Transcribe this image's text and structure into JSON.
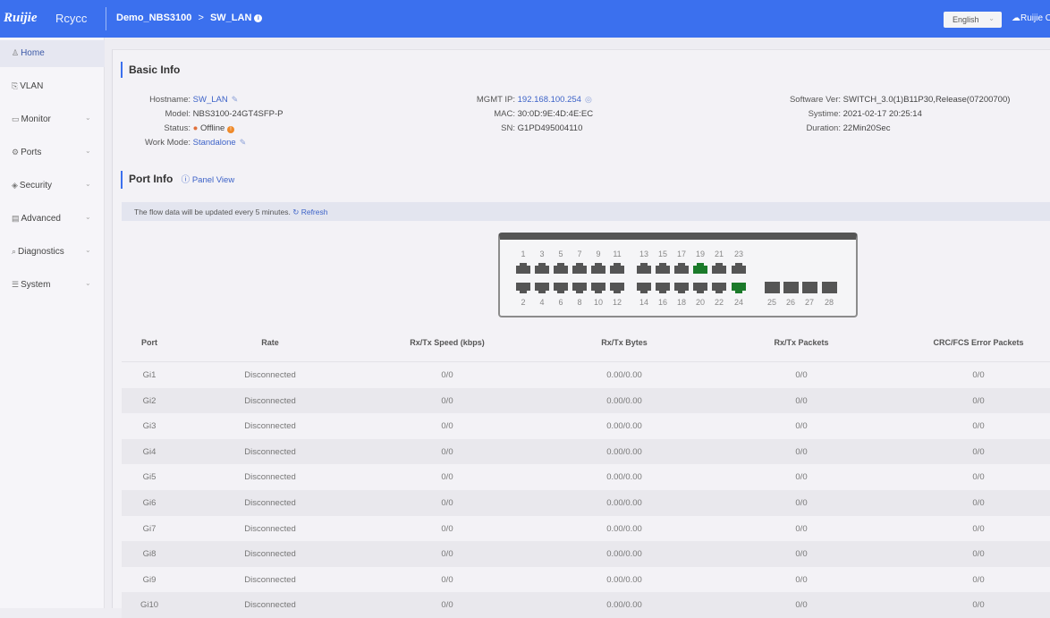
{
  "header": {
    "logo": "Ruijie",
    "logo2": "Rcycc",
    "crumb_parent": "Demo_NBS3100",
    "crumb_sep": ">",
    "crumb_current": "SW_LAN",
    "language": "English",
    "cloud_link": "Ruijie C"
  },
  "sidebar": {
    "items": [
      {
        "label": "Home",
        "icon": "home-icon",
        "active": true,
        "expand": false
      },
      {
        "label": "VLAN",
        "icon": "vlan-icon",
        "expand": false
      },
      {
        "label": "Monitor",
        "icon": "monitor-icon",
        "expand": true
      },
      {
        "label": "Ports",
        "icon": "gear-icon",
        "expand": true
      },
      {
        "label": "Security",
        "icon": "shield-icon",
        "expand": true
      },
      {
        "label": "Advanced",
        "icon": "briefcase-icon",
        "expand": true
      },
      {
        "label": "Diagnostics",
        "icon": "search-icon",
        "expand": true
      },
      {
        "label": "System",
        "icon": "sliders-icon",
        "expand": true
      }
    ]
  },
  "basic": {
    "title": "Basic Info",
    "hostname_k": "Hostname:",
    "hostname": "SW_LAN",
    "model_k": "Model:",
    "model": "NBS3100-24GT4SFP-P",
    "status_k": "Status:",
    "status": "Offline",
    "mode_k": "Work Mode:",
    "mode": "Standalone",
    "ip_k": "MGMT IP:",
    "ip": "192.168.100.254",
    "mac_k": "MAC:",
    "mac": "30:0D:9E:4D:4E:EC",
    "sn_k": "SN:",
    "sn": "G1PD495004110",
    "sw_k": "Software Ver:",
    "sw": "SWITCH_3.0(1)B11P30,Release(07200700)",
    "time_k": "Systime:",
    "time": "2021-02-17 20:25:14",
    "dur_k": "Duration:",
    "dur": "22Min20Sec"
  },
  "port_info": {
    "title": "Port Info",
    "panel_view": "Panel View",
    "notice": "The flow data will be updated every 5 minutes.",
    "refresh": "Refresh"
  },
  "panel": {
    "active_color": "#1b7a2a",
    "up_ports": [
      19,
      24
    ]
  },
  "table": {
    "headers": [
      "Port",
      "Rate",
      "Rx/Tx Speed (kbps)",
      "Rx/Tx Bytes",
      "Rx/Tx Packets",
      "CRC/FCS Error Packets"
    ],
    "rows": [
      [
        "Gi1",
        "Disconnected",
        "0/0",
        "0.00/0.00",
        "0/0",
        "0/0"
      ],
      [
        "Gi2",
        "Disconnected",
        "0/0",
        "0.00/0.00",
        "0/0",
        "0/0"
      ],
      [
        "Gi3",
        "Disconnected",
        "0/0",
        "0.00/0.00",
        "0/0",
        "0/0"
      ],
      [
        "Gi4",
        "Disconnected",
        "0/0",
        "0.00/0.00",
        "0/0",
        "0/0"
      ],
      [
        "Gi5",
        "Disconnected",
        "0/0",
        "0.00/0.00",
        "0/0",
        "0/0"
      ],
      [
        "Gi6",
        "Disconnected",
        "0/0",
        "0.00/0.00",
        "0/0",
        "0/0"
      ],
      [
        "Gi7",
        "Disconnected",
        "0/0",
        "0.00/0.00",
        "0/0",
        "0/0"
      ],
      [
        "Gi8",
        "Disconnected",
        "0/0",
        "0.00/0.00",
        "0/0",
        "0/0"
      ],
      [
        "Gi9",
        "Disconnected",
        "0/0",
        "0.00/0.00",
        "0/0",
        "0/0"
      ],
      [
        "Gi10",
        "Disconnected",
        "0/0",
        "0.00/0.00",
        "0/0",
        "0/0"
      ]
    ]
  },
  "colors": {
    "header": "#3b70ee",
    "accent": "#3d63c8",
    "offline": "#e0703a"
  }
}
